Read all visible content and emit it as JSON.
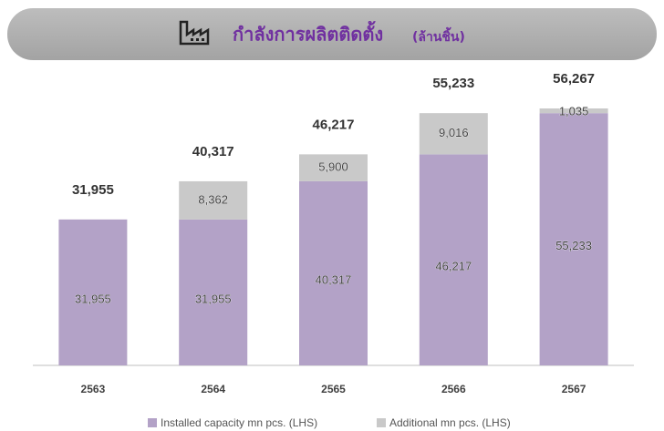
{
  "chart_data": {
    "type": "stacked_bar",
    "title": "กำลังการผลิตติดตั้ง",
    "title_unit": "(ล้านชิ้น)",
    "categories": [
      "2563",
      "2564",
      "2565",
      "2566",
      "2567"
    ],
    "series": [
      {
        "name": "Installed capacity mn pcs. (LHS)",
        "color": "#b3a2c7",
        "values": [
          31955,
          31955,
          40317,
          46217,
          55233
        ],
        "value_labels": [
          "31,955",
          "31,955",
          "40,317",
          "46,217",
          "55,233"
        ]
      },
      {
        "name": "Additional mn pcs. (LHS)",
        "color": "#c9c9c9",
        "values": [
          null,
          8362,
          5900,
          9016,
          1035
        ],
        "value_labels": [
          null,
          "8,362",
          "5,900",
          "9,016",
          "1,035"
        ]
      }
    ],
    "totals": [
      31955,
      40317,
      46217,
      55233,
      56267
    ],
    "total_labels": [
      "31,955",
      "40,317",
      "46,217",
      "55,233",
      "56,267"
    ]
  }
}
